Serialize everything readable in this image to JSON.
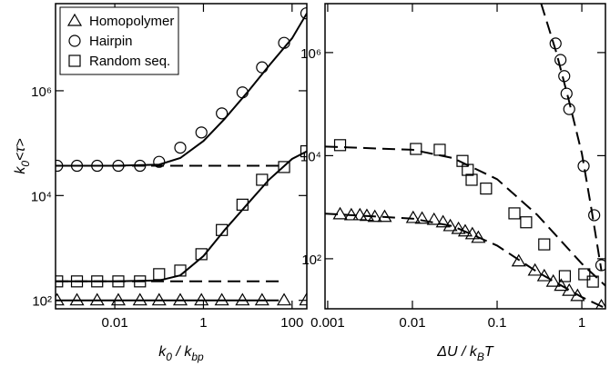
{
  "chart_data": [
    {
      "type": "line",
      "xlog": true,
      "ylog": true,
      "xlim": [
        0.00046,
        215
      ],
      "ylim": [
        69,
        46000000
      ],
      "xticks": [
        0.01,
        1,
        100
      ],
      "yticks": [
        {
          "value": 100,
          "label": "10²"
        },
        {
          "value": 10000,
          "label": "10⁴"
        },
        {
          "value": 1000000,
          "label": "10⁶"
        }
      ],
      "xlabel": [
        "k",
        "0",
        " / k",
        "bp"
      ],
      "ylabel": [
        "k",
        "0",
        "<τ>"
      ],
      "legend": "upper left",
      "series": [
        {
          "name": "Homopolymer",
          "marker": "triangle",
          "color": "#000000",
          "x": [
            0.0005,
            0.0014,
            0.004,
            0.012,
            0.037,
            0.1,
            0.3,
            0.9,
            2.6,
            7.6,
            21,
            66,
            210
          ],
          "values": [
            100,
            100,
            100,
            100,
            100,
            100,
            100,
            100,
            100,
            100,
            100,
            100,
            100
          ]
        },
        {
          "name": "Hairpin",
          "marker": "circle",
          "color": "#000000",
          "x": [
            0.0005,
            0.0014,
            0.004,
            0.012,
            0.037,
            0.1,
            0.3,
            0.9,
            2.6,
            7.6,
            21,
            66,
            210
          ],
          "values": [
            37000,
            37000,
            37000,
            37000,
            37000,
            44000,
            82000,
            160000,
            370000,
            930000,
            2800000,
            8200000,
            30000000
          ]
        },
        {
          "name": "Random seq.",
          "marker": "square",
          "color": "#000000",
          "x": [
            0.0005,
            0.0014,
            0.004,
            0.012,
            0.037,
            0.1,
            0.3,
            0.9,
            2.6,
            7.6,
            21,
            66,
            210
          ],
          "values": [
            230,
            230,
            230,
            230,
            230,
            316,
            370,
            760,
            2200,
            6700,
            20000,
            35000,
            70000
          ]
        },
        {
          "style": "solid",
          "color": "#000000",
          "x": [
            0.00046,
            50
          ],
          "values": [
            100,
            100
          ]
        },
        {
          "style": "dashed",
          "color": "#000000",
          "x": [
            0.00046,
            50
          ],
          "values": [
            37000,
            37000
          ]
        },
        {
          "style": "dashed",
          "color": "#000000",
          "x": [
            0.00046,
            50
          ],
          "values": [
            230,
            230
          ]
        },
        {
          "style": "solid",
          "color": "#000000",
          "x": [
            0.00046,
            0.01,
            0.1,
            0.3,
            1,
            3,
            10,
            30,
            100,
            215
          ],
          "values": [
            37000,
            37000,
            39000,
            52000,
            110000,
            290000,
            950000,
            3000000,
            10000000,
            30000000
          ]
        },
        {
          "style": "solid",
          "color": "#000000",
          "x": [
            0.00046,
            0.01,
            0.1,
            0.3,
            1,
            3,
            10,
            30,
            100,
            215
          ],
          "values": [
            230,
            230,
            240,
            300,
            700,
            2200,
            7000,
            20000,
            50000,
            70000
          ]
        }
      ]
    },
    {
      "type": "line",
      "xlog": true,
      "ylog": true,
      "xlim": [
        0.00093,
        1.9
      ],
      "ylim": [
        10.7,
        8900000
      ],
      "xticks": [
        0.001,
        0.01,
        0.1,
        1
      ],
      "yticks": [
        {
          "value": 100,
          "label": "10²"
        },
        {
          "value": 10000,
          "label": "10⁴"
        },
        {
          "value": 1000000,
          "label": "10⁶"
        }
      ],
      "xlabel": [
        "ΔU / k",
        "B",
        "T"
      ],
      "series": [
        {
          "marker": "triangle",
          "color": "#000000",
          "x": [
            0.0014,
            0.0019,
            0.0024,
            0.0029,
            0.0036,
            0.0047,
            0.0102,
            0.013,
            0.018,
            0.023,
            0.028,
            0.035,
            0.042,
            0.051,
            0.06,
            0.18,
            0.28,
            0.36,
            0.46,
            0.57,
            0.71,
            0.89,
            1.7
          ],
          "values": [
            730,
            700,
            700,
            680,
            650,
            650,
            620,
            600,
            570,
            510,
            430,
            380,
            340,
            300,
            255,
            89,
            59,
            46,
            36,
            30,
            24,
            19,
            12
          ]
        },
        {
          "marker": "circle",
          "color": "#000000",
          "x": [
            0.49,
            0.56,
            0.62,
            0.66,
            0.71,
            1.05,
            1.4,
            1.7
          ],
          "values": [
            1500000,
            720000,
            350000,
            160000,
            80000,
            6300,
            700,
            75
          ]
        },
        {
          "marker": "square",
          "color": "#000000",
          "x": [
            0.0014,
            0.011,
            0.021,
            0.039,
            0.045,
            0.05,
            0.074,
            0.16,
            0.22,
            0.36,
            0.63,
            1.07,
            1.35
          ],
          "values": [
            16000,
            13500,
            13000,
            7900,
            5300,
            3400,
            2300,
            760,
            510,
            190,
            46,
            50,
            36
          ]
        },
        {
          "style": "dashed",
          "color": "#000000",
          "x": [
            0.33,
            0.5,
            0.7,
            1,
            1.3,
            1.7
          ],
          "values": [
            9000000,
            1000000,
            120000,
            11000,
            900,
            60
          ]
        },
        {
          "style": "dashed",
          "color": "#000000",
          "x": [
            0.00093,
            0.01,
            0.03,
            0.1,
            0.3,
            1,
            1.9
          ],
          "values": [
            15000,
            13000,
            9000,
            3500,
            700,
            80,
            30
          ]
        },
        {
          "style": "dashed",
          "color": "#000000",
          "x": [
            0.00093,
            0.01,
            0.03,
            0.1,
            0.3,
            1,
            1.9
          ],
          "values": [
            750,
            600,
            430,
            180,
            55,
            18,
            11
          ]
        }
      ]
    }
  ]
}
